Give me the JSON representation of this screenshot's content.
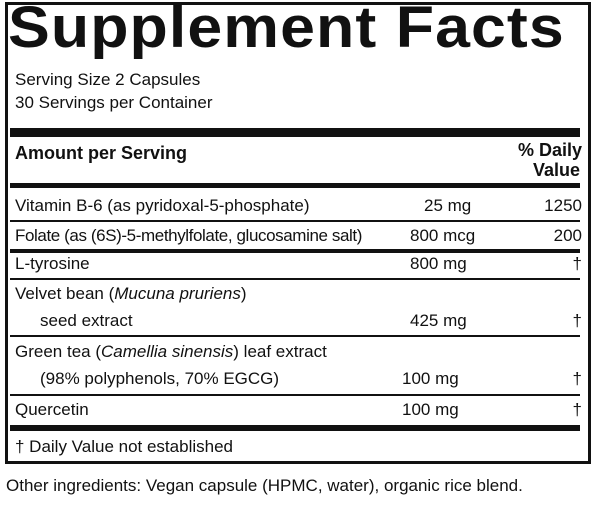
{
  "title": "Supplement Facts",
  "serving_size": "Serving Size 2 Capsules",
  "servings": "30 Servings per Container",
  "header": {
    "amount": "Amount per Serving",
    "dv1": "% Daily",
    "dv2": "Value"
  },
  "rows": [
    {
      "name": "Vitamin B-6 (as pyridoxal-5-phosphate)",
      "amount": "25 mg",
      "dv": "1250"
    },
    {
      "name": "Folate (as (6S)-5-methylfolate, glucosamine salt)",
      "amount": "800 mcg",
      "dv": "200"
    },
    {
      "name": "L-tyrosine",
      "amount": "800 mg",
      "dv": "†"
    },
    {
      "name_a": "Velvet bean (",
      "name_i": "Mucuna pruriens",
      "name_b": ")",
      "line2": "seed extract",
      "amount": "425 mg",
      "dv": "†"
    },
    {
      "name_a": "Green tea (",
      "name_i": "Camellia sinensis",
      "name_b": ") leaf extract",
      "line2": "(98% polyphenols, 70% EGCG)",
      "amount": "100 mg",
      "dv": "†"
    },
    {
      "name": "Quercetin",
      "amount": "100 mg",
      "dv": "†"
    }
  ],
  "footnote": "† Daily Value not established",
  "other": "Other ingredients: Vegan capsule (HPMC, water), organic rice blend."
}
